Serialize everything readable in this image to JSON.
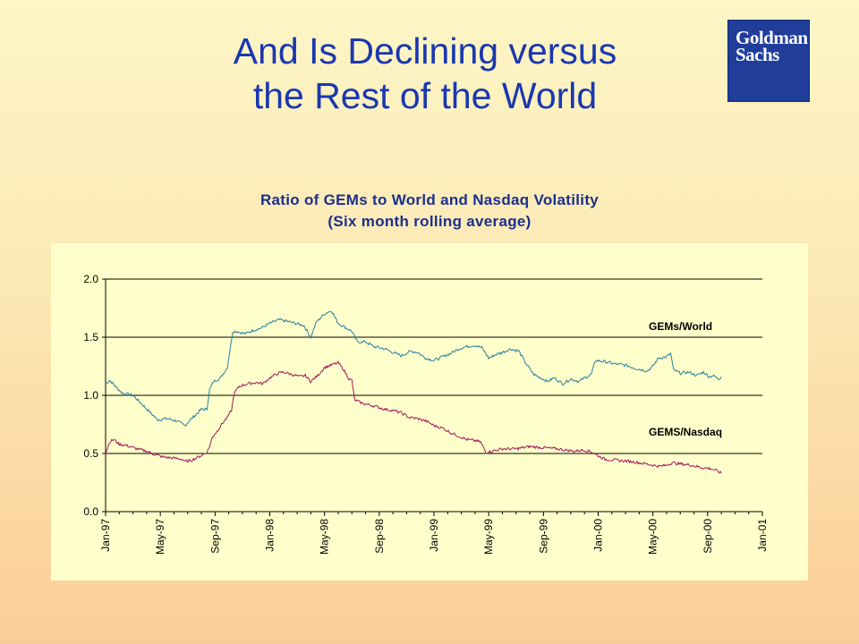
{
  "slide": {
    "title_line1": "And Is Declining versus",
    "title_line2": "the Rest of the World",
    "logo_line1": "Goldman",
    "logo_line2": "Sachs"
  },
  "chart_data": {
    "type": "line",
    "title": "Ratio of GEMs to World and Nasdaq Volatility",
    "subtitle": "(Six month rolling average)",
    "ylim": [
      0.0,
      2.0
    ],
    "yticks": [
      "0.0",
      "0.5",
      "1.0",
      "1.5",
      "2.0"
    ],
    "xlim": [
      "Jan-97",
      "Jan-01"
    ],
    "xticks": [
      "Jan-97",
      "May-97",
      "Sep-97",
      "Jan-98",
      "May-98",
      "Sep-98",
      "Jan-99",
      "May-99",
      "Sep-99",
      "Jan-00",
      "May-00",
      "Sep-00",
      "Jan-01"
    ],
    "grid": "horizontal",
    "colors": {
      "gems_world": "#2a7f9e",
      "gems_nasdaq": "#a3195b",
      "grid": "#000000"
    },
    "series": [
      {
        "name": "GEMs/World",
        "color": "#2a7f9e",
        "points": [
          [
            0,
            1.1
          ],
          [
            0.3,
            1.13
          ],
          [
            0.7,
            1.08
          ],
          [
            1.2,
            1.02
          ],
          [
            2.0,
            1.0
          ],
          [
            2.6,
            0.93
          ],
          [
            3.2,
            0.86
          ],
          [
            3.8,
            0.79
          ],
          [
            4.5,
            0.8
          ],
          [
            5.2,
            0.78
          ],
          [
            5.8,
            0.74
          ],
          [
            6.2,
            0.79
          ],
          [
            7.0,
            0.88
          ],
          [
            7.4,
            0.88
          ],
          [
            7.6,
            1.05
          ],
          [
            7.9,
            1.12
          ],
          [
            8.4,
            1.15
          ],
          [
            8.9,
            1.24
          ],
          [
            9.1,
            1.4
          ],
          [
            9.3,
            1.55
          ],
          [
            9.6,
            1.55
          ],
          [
            10.2,
            1.53
          ],
          [
            10.8,
            1.56
          ],
          [
            11.4,
            1.58
          ],
          [
            12.0,
            1.62
          ],
          [
            12.7,
            1.65
          ],
          [
            13.5,
            1.63
          ],
          [
            14.5,
            1.6
          ],
          [
            15.0,
            1.5
          ],
          [
            15.4,
            1.63
          ],
          [
            16.0,
            1.7
          ],
          [
            16.5,
            1.73
          ],
          [
            17.0,
            1.62
          ],
          [
            17.3,
            1.6
          ],
          [
            18.0,
            1.55
          ],
          [
            18.4,
            1.46
          ],
          [
            19.0,
            1.46
          ],
          [
            19.6,
            1.42
          ],
          [
            20.4,
            1.4
          ],
          [
            21.0,
            1.37
          ],
          [
            21.6,
            1.34
          ],
          [
            22.3,
            1.38
          ],
          [
            22.8,
            1.37
          ],
          [
            23.4,
            1.32
          ],
          [
            24.0,
            1.3
          ],
          [
            24.8,
            1.34
          ],
          [
            25.2,
            1.36
          ],
          [
            25.8,
            1.4
          ],
          [
            26.4,
            1.42
          ],
          [
            27.0,
            1.43
          ],
          [
            27.5,
            1.41
          ],
          [
            28.0,
            1.32
          ],
          [
            28.5,
            1.35
          ],
          [
            29.0,
            1.37
          ],
          [
            29.6,
            1.4
          ],
          [
            30.2,
            1.38
          ],
          [
            30.8,
            1.26
          ],
          [
            31.3,
            1.18
          ],
          [
            31.8,
            1.15
          ],
          [
            32.3,
            1.12
          ],
          [
            32.8,
            1.15
          ],
          [
            33.4,
            1.1
          ],
          [
            34.0,
            1.14
          ],
          [
            34.6,
            1.12
          ],
          [
            35.0,
            1.15
          ],
          [
            35.5,
            1.18
          ],
          [
            35.8,
            1.3
          ],
          [
            36.5,
            1.29
          ],
          [
            37.2,
            1.27
          ],
          [
            38.0,
            1.26
          ],
          [
            38.8,
            1.23
          ],
          [
            39.6,
            1.21
          ],
          [
            40.0,
            1.25
          ],
          [
            40.4,
            1.32
          ],
          [
            41.0,
            1.33
          ],
          [
            41.3,
            1.36
          ],
          [
            41.5,
            1.22
          ],
          [
            42.0,
            1.19
          ],
          [
            42.6,
            1.2
          ],
          [
            43.2,
            1.17
          ],
          [
            43.7,
            1.2
          ],
          [
            44.1,
            1.16
          ],
          [
            44.4,
            1.17
          ],
          [
            44.8,
            1.14
          ],
          [
            45.0,
            1.16
          ]
        ]
      },
      {
        "name": "GEMS/Nasdaq",
        "color": "#a3195b",
        "points": [
          [
            0,
            0.5
          ],
          [
            0.3,
            0.6
          ],
          [
            0.6,
            0.62
          ],
          [
            1.0,
            0.58
          ],
          [
            1.5,
            0.57
          ],
          [
            2.0,
            0.55
          ],
          [
            2.6,
            0.53
          ],
          [
            3.0,
            0.52
          ],
          [
            3.6,
            0.49
          ],
          [
            4.2,
            0.47
          ],
          [
            5.0,
            0.46
          ],
          [
            5.6,
            0.45
          ],
          [
            5.8,
            0.43
          ],
          [
            6.2,
            0.44
          ],
          [
            6.8,
            0.47
          ],
          [
            7.4,
            0.51
          ],
          [
            7.6,
            0.56
          ],
          [
            7.8,
            0.64
          ],
          [
            8.2,
            0.7
          ],
          [
            8.6,
            0.77
          ],
          [
            8.9,
            0.81
          ],
          [
            9.2,
            0.87
          ],
          [
            9.4,
            1.02
          ],
          [
            9.8,
            1.08
          ],
          [
            10.4,
            1.1
          ],
          [
            11.0,
            1.11
          ],
          [
            11.5,
            1.1
          ],
          [
            12.0,
            1.15
          ],
          [
            12.6,
            1.19
          ],
          [
            13.0,
            1.2
          ],
          [
            13.6,
            1.18
          ],
          [
            14.2,
            1.16
          ],
          [
            14.6,
            1.17
          ],
          [
            15.0,
            1.12
          ],
          [
            15.5,
            1.17
          ],
          [
            16.0,
            1.24
          ],
          [
            16.5,
            1.26
          ],
          [
            17.0,
            1.28
          ],
          [
            17.4,
            1.22
          ],
          [
            17.8,
            1.14
          ],
          [
            18.0,
            1.13
          ],
          [
            18.2,
            0.96
          ],
          [
            18.8,
            0.93
          ],
          [
            19.6,
            0.91
          ],
          [
            20.4,
            0.88
          ],
          [
            21.0,
            0.87
          ],
          [
            21.6,
            0.85
          ],
          [
            22.2,
            0.81
          ],
          [
            22.8,
            0.8
          ],
          [
            23.4,
            0.78
          ],
          [
            24.0,
            0.74
          ],
          [
            24.6,
            0.72
          ],
          [
            25.2,
            0.68
          ],
          [
            25.8,
            0.65
          ],
          [
            26.4,
            0.62
          ],
          [
            27.0,
            0.61
          ],
          [
            27.4,
            0.6
          ],
          [
            27.8,
            0.51
          ],
          [
            28.2,
            0.52
          ],
          [
            29.0,
            0.54
          ],
          [
            30.0,
            0.54
          ],
          [
            31.0,
            0.56
          ],
          [
            32.0,
            0.55
          ],
          [
            33.0,
            0.54
          ],
          [
            33.6,
            0.53
          ],
          [
            34.2,
            0.52
          ],
          [
            35.0,
            0.53
          ],
          [
            35.6,
            0.51
          ],
          [
            36.0,
            0.48
          ],
          [
            36.5,
            0.45
          ],
          [
            37.5,
            0.44
          ],
          [
            38.5,
            0.43
          ],
          [
            39.5,
            0.41
          ],
          [
            40.5,
            0.39
          ],
          [
            41.0,
            0.4
          ],
          [
            41.4,
            0.42
          ],
          [
            42.0,
            0.41
          ],
          [
            42.8,
            0.4
          ],
          [
            43.5,
            0.38
          ],
          [
            44.2,
            0.37
          ],
          [
            44.7,
            0.35
          ],
          [
            45.0,
            0.33
          ]
        ]
      }
    ]
  }
}
